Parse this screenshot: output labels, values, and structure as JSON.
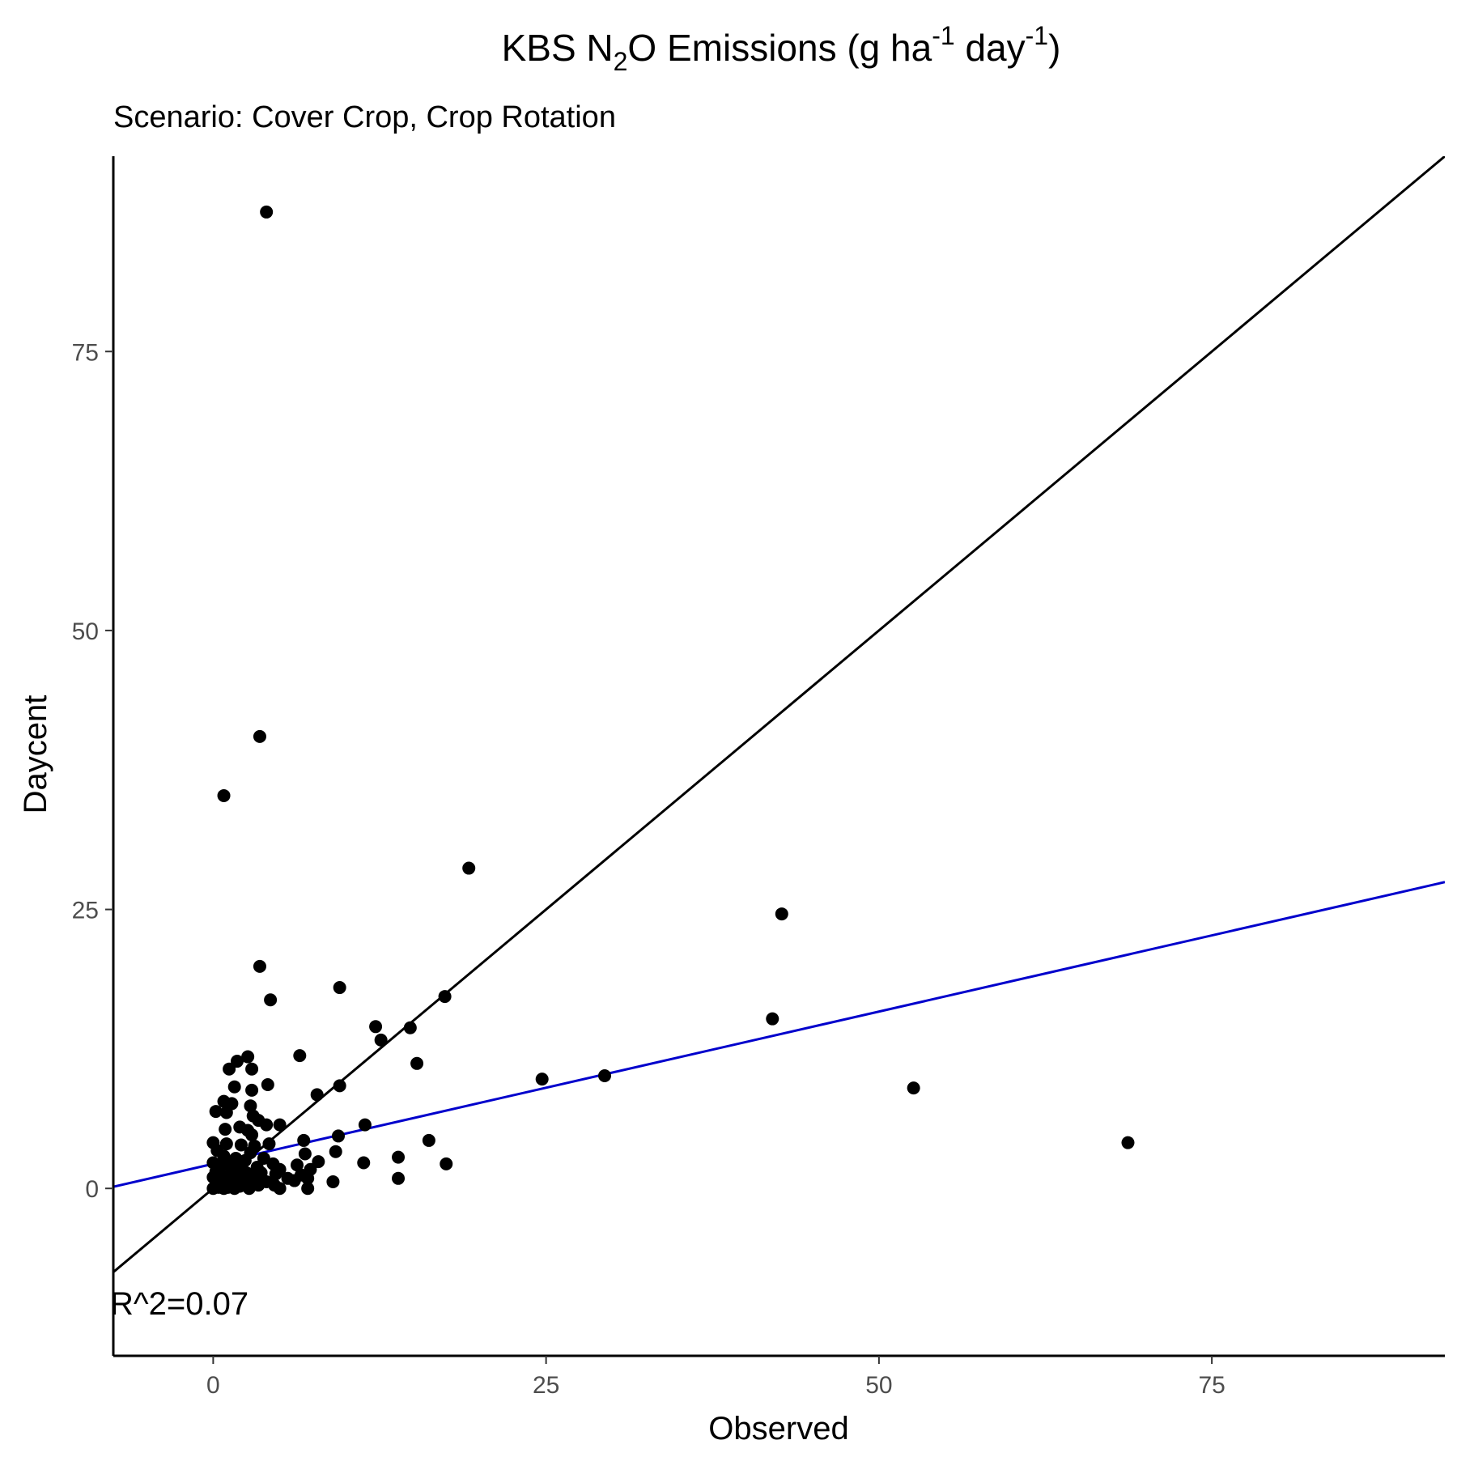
{
  "chart_data": {
    "type": "scatter",
    "title": {
      "prefix": "KBS N",
      "sub_2": "2",
      "mid": "O Emissions (g ha",
      "sup_1": "-1",
      "mid2": " day",
      "sup_2": "-1",
      "suffix": ")"
    },
    "subtitle": "Scenario: Cover Crop, Crop Rotation",
    "xlabel": "Observed",
    "ylabel": "Daycent",
    "xlim": [
      -7.5,
      92.5
    ],
    "ylim": [
      -15,
      92.5
    ],
    "x_ticks": [
      "0",
      "25",
      "50",
      "75"
    ],
    "x_tick_values": [
      0,
      25,
      50,
      75
    ],
    "y_ticks": [
      "0",
      "25",
      "50",
      "75"
    ],
    "y_tick_values": [
      0,
      25,
      50,
      75
    ],
    "grid": false,
    "annotation": "R^2=0.07",
    "lines": [
      {
        "role": "1:1 line",
        "color": "#000000",
        "slope": 1.0,
        "intercept": 0
      },
      {
        "role": "regression",
        "color": "#0000cc",
        "slope": 0.273,
        "intercept": 2.2
      }
    ],
    "point_color": "#000000",
    "points": [
      [
        4.0,
        87.5
      ],
      [
        3.5,
        40.5
      ],
      [
        0.8,
        35.2
      ],
      [
        19.2,
        28.7
      ],
      [
        42.7,
        24.6
      ],
      [
        3.5,
        19.9
      ],
      [
        9.5,
        18.0
      ],
      [
        4.3,
        16.9
      ],
      [
        17.4,
        17.2
      ],
      [
        12.2,
        14.5
      ],
      [
        14.8,
        14.4
      ],
      [
        12.6,
        13.3
      ],
      [
        42.0,
        15.2
      ],
      [
        6.5,
        11.9
      ],
      [
        15.3,
        11.2
      ],
      [
        1.2,
        10.7
      ],
      [
        2.6,
        11.8
      ],
      [
        1.8,
        11.4
      ],
      [
        24.7,
        9.8
      ],
      [
        29.4,
        10.1
      ],
      [
        52.6,
        9.0
      ],
      [
        2.9,
        10.7
      ],
      [
        4.1,
        9.3
      ],
      [
        9.5,
        9.2
      ],
      [
        1.6,
        9.1
      ],
      [
        2.9,
        8.8
      ],
      [
        7.8,
        8.4
      ],
      [
        0.8,
        7.8
      ],
      [
        1.4,
        7.6
      ],
      [
        2.8,
        7.4
      ],
      [
        3.0,
        6.5
      ],
      [
        0.2,
        6.9
      ],
      [
        1.0,
        6.8
      ],
      [
        3.4,
        6.1
      ],
      [
        4.0,
        5.7
      ],
      [
        5.0,
        5.7
      ],
      [
        11.4,
        5.7
      ],
      [
        0.9,
        5.3
      ],
      [
        2.0,
        5.5
      ],
      [
        2.6,
        5.2
      ],
      [
        2.9,
        4.8
      ],
      [
        9.4,
        4.7
      ],
      [
        6.8,
        4.3
      ],
      [
        16.2,
        4.3
      ],
      [
        4.2,
        4.0
      ],
      [
        0.0,
        4.1
      ],
      [
        1.0,
        4.0
      ],
      [
        2.1,
        3.9
      ],
      [
        3.1,
        3.8
      ],
      [
        68.7,
        4.1
      ],
      [
        9.2,
        3.3
      ],
      [
        0.3,
        3.4
      ],
      [
        2.8,
        3.2
      ],
      [
        6.9,
        3.1
      ],
      [
        13.9,
        2.8
      ],
      [
        0.8,
        2.9
      ],
      [
        1.7,
        2.7
      ],
      [
        3.8,
        2.7
      ],
      [
        2.4,
        2.5
      ],
      [
        7.9,
        2.4
      ],
      [
        11.3,
        2.3
      ],
      [
        17.5,
        2.2
      ],
      [
        0.0,
        2.3
      ],
      [
        1.1,
        2.2
      ],
      [
        4.5,
        2.2
      ],
      [
        6.3,
        2.1
      ],
      [
        0.6,
        2.0
      ],
      [
        1.9,
        1.9
      ],
      [
        3.3,
        1.9
      ],
      [
        5.0,
        1.7
      ],
      [
        7.3,
        1.7
      ],
      [
        0.2,
        1.5
      ],
      [
        1.4,
        1.5
      ],
      [
        2.5,
        1.4
      ],
      [
        3.6,
        1.4
      ],
      [
        4.7,
        1.3
      ],
      [
        6.6,
        1.2
      ],
      [
        0.0,
        1.0
      ],
      [
        1.0,
        1.0
      ],
      [
        2.2,
        1.0
      ],
      [
        3.0,
        1.0
      ],
      [
        5.6,
        0.9
      ],
      [
        7.1,
        0.9
      ],
      [
        13.9,
        0.9
      ],
      [
        0.5,
        0.7
      ],
      [
        1.7,
        0.7
      ],
      [
        2.8,
        0.6
      ],
      [
        4.0,
        0.6
      ],
      [
        6.1,
        0.7
      ],
      [
        9.0,
        0.6
      ],
      [
        0.3,
        0.3
      ],
      [
        1.3,
        0.3
      ],
      [
        2.3,
        0.3
      ],
      [
        3.4,
        0.3
      ],
      [
        4.6,
        0.3
      ],
      [
        0.0,
        0.0
      ],
      [
        0.8,
        0.0
      ],
      [
        1.6,
        0.0
      ],
      [
        2.7,
        0.0
      ],
      [
        5.0,
        0.0
      ],
      [
        7.1,
        0.0
      ],
      [
        0.4,
        0.1
      ],
      [
        1.1,
        0.1
      ],
      [
        2.0,
        0.2
      ]
    ]
  }
}
